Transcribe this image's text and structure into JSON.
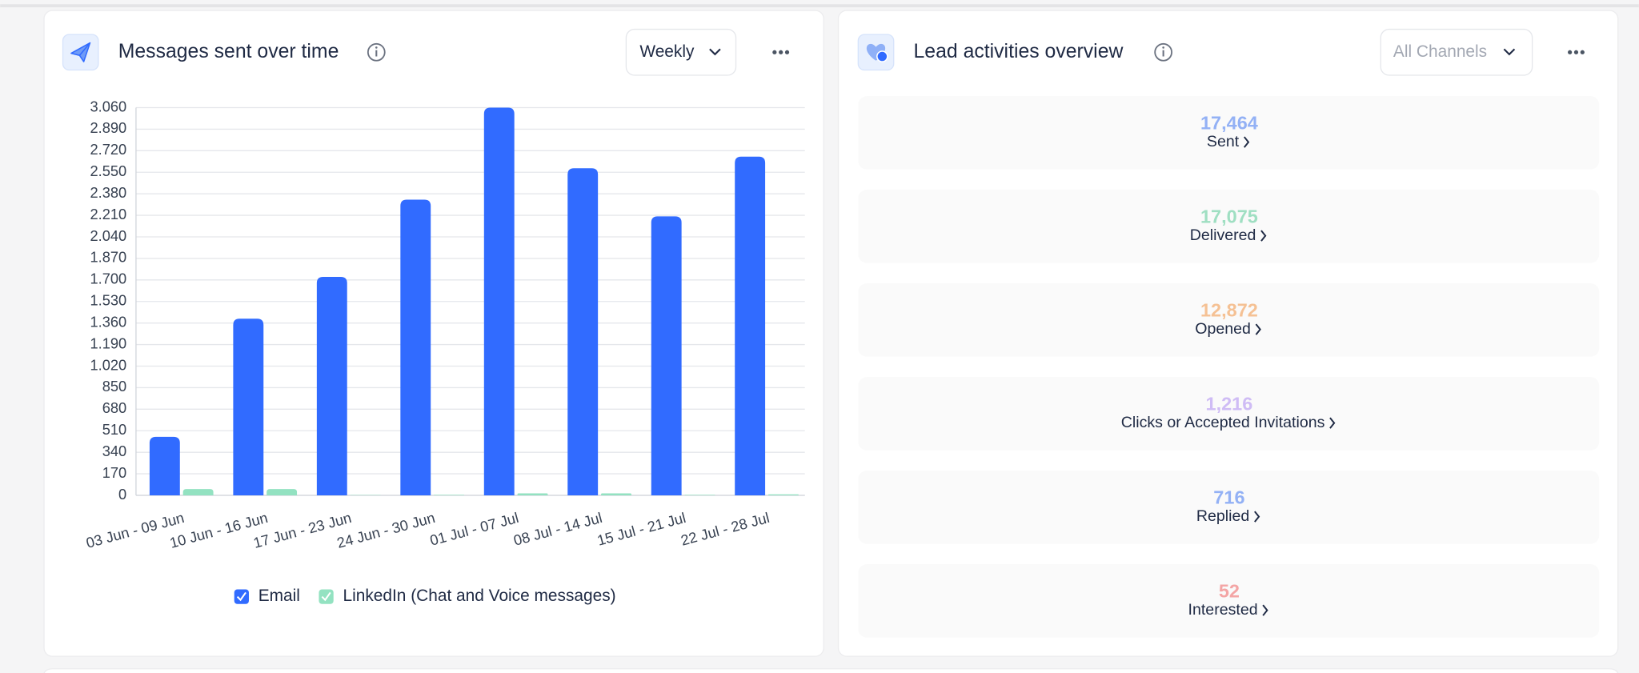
{
  "chart_data": {
    "type": "bar",
    "title": "Messages sent over time",
    "period": "Weekly",
    "categories": [
      "03 Jun - 09 Jun",
      "10 Jun - 16 Jun",
      "17 Jun - 23 Jun",
      "24 Jun - 30 Jun",
      "01 Jul - 07 Jul",
      "08 Jul - 14 Jul",
      "15 Jul - 21 Jul",
      "22 Jul - 28 Jul"
    ],
    "series": [
      {
        "name": "Email",
        "color": "#316bff",
        "values": [
          462,
          1394,
          1724,
          2334,
          3060,
          2582,
          2202,
          2673
        ]
      },
      {
        "name": "LinkedIn (Chat and Voice messages)",
        "color": "#93e2c1",
        "values": [
          50,
          50,
          2,
          4,
          16,
          16,
          4,
          8
        ]
      }
    ],
    "ylim": [
      0,
      3060
    ],
    "yticks": [
      0,
      170,
      340,
      510,
      680,
      850,
      {
        "value": 1020,
        "label": "1.020"
      },
      {
        "value": 1190,
        "label": "1.190"
      },
      {
        "value": 1360,
        "label": "1.360"
      },
      {
        "value": 1530,
        "label": "1.530"
      },
      {
        "value": 1700,
        "label": "1.700"
      },
      {
        "value": 1870,
        "label": "1.870"
      },
      {
        "value": 2040,
        "label": "2.040"
      },
      {
        "value": 2210,
        "label": "2.210"
      },
      {
        "value": 2380,
        "label": "2.380"
      },
      {
        "value": 2550,
        "label": "2.550"
      },
      {
        "value": 2720,
        "label": "2.720"
      },
      {
        "value": 2890,
        "label": "2.890"
      },
      {
        "value": 3060,
        "label": "3.060"
      }
    ],
    "grid": true,
    "legend": "bottom"
  },
  "lead_panel": {
    "title": "Lead activities overview",
    "channel": "All Channels",
    "stats": [
      {
        "value": "17,464",
        "label": "Sent",
        "color": "#93b1f5"
      },
      {
        "value": "17,075",
        "label": "Delivered",
        "color": "#9fdfc2"
      },
      {
        "value": "12,872",
        "label": "Opened",
        "color": "#f5c194"
      },
      {
        "value": "1,216",
        "label": "Clicks or Accepted Invitations",
        "color": "#cfbcf5"
      },
      {
        "value": "716",
        "label": "Replied",
        "color": "#93b1f5"
      },
      {
        "value": "52",
        "label": "Interested",
        "color": "#f4a5a5"
      }
    ]
  }
}
